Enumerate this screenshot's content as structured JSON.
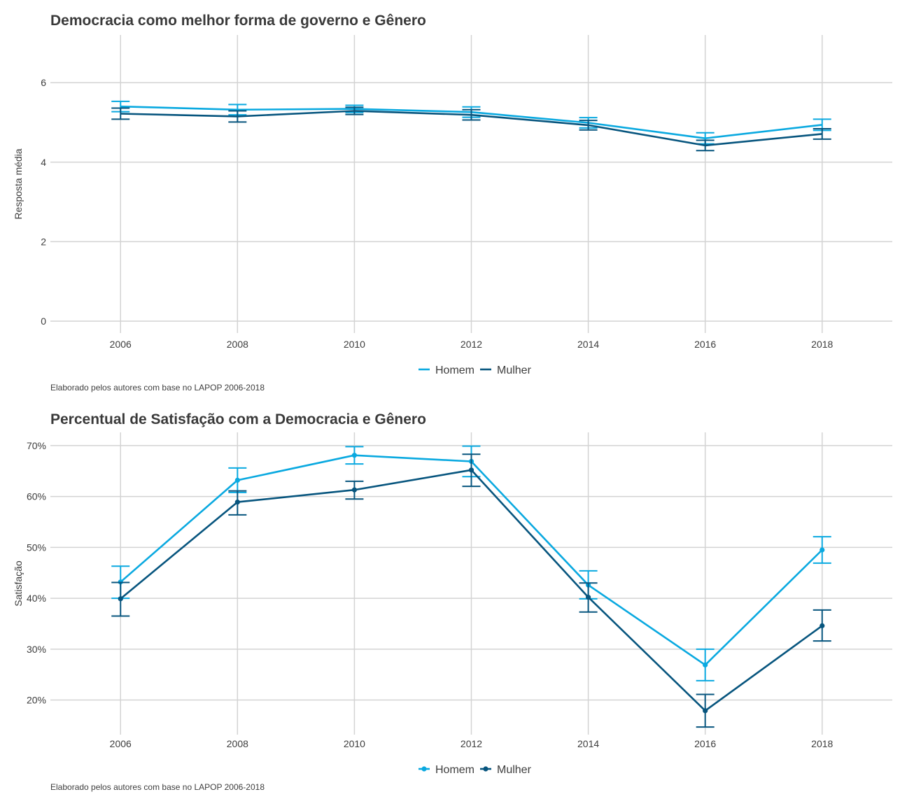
{
  "chart_data": [
    {
      "type": "line",
      "title": "Democracia como melhor forma de governo e Gênero",
      "xlabel": "",
      "ylabel": "Resposta média",
      "x": [
        2006,
        2008,
        2010,
        2012,
        2014,
        2016,
        2018
      ],
      "xlim": [
        2004.8,
        2019.2
      ],
      "ylim": [
        -0.3,
        7.2
      ],
      "yticks": [
        0,
        2,
        4,
        6
      ],
      "ytick_labels": [
        "0",
        "2",
        "4",
        "6"
      ],
      "points": false,
      "grid": true,
      "legend_position": "bottom",
      "series": [
        {
          "name": "Homem",
          "color": "#0aa9e0",
          "values": [
            5.4,
            5.32,
            5.34,
            5.26,
            4.99,
            4.6,
            4.94
          ],
          "lower": [
            5.27,
            5.19,
            5.25,
            5.13,
            4.86,
            4.46,
            4.8
          ],
          "upper": [
            5.53,
            5.45,
            5.43,
            5.39,
            5.12,
            4.74,
            5.08
          ]
        },
        {
          "name": "Mulher",
          "color": "#07557e",
          "values": [
            5.22,
            5.15,
            5.29,
            5.19,
            4.93,
            4.42,
            4.71
          ],
          "lower": [
            5.08,
            5.01,
            5.2,
            5.06,
            4.81,
            4.29,
            4.58
          ],
          "upper": [
            5.36,
            5.29,
            5.38,
            5.32,
            5.05,
            4.55,
            4.84
          ]
        }
      ],
      "caption": "Elaborado pelos autores com base no LAPOP 2006-2018"
    },
    {
      "type": "line",
      "title": "Percentual de Satisfação com a Democracia e Gênero",
      "xlabel": "",
      "ylabel": "Satisfação",
      "x": [
        2006,
        2008,
        2010,
        2012,
        2014,
        2016,
        2018
      ],
      "xlim": [
        2004.8,
        2019.2
      ],
      "ylim": [
        13.2,
        72.6
      ],
      "yticks": [
        20,
        30,
        40,
        50,
        60,
        70
      ],
      "ytick_labels": [
        "20%",
        "30%",
        "40%",
        "50%",
        "60%",
        "70%"
      ],
      "points": true,
      "grid": true,
      "legend_position": "bottom",
      "series": [
        {
          "name": "Homem",
          "color": "#0aa9e0",
          "values": [
            43.2,
            63.2,
            68.1,
            66.9,
            42.6,
            26.9,
            49.5
          ],
          "lower": [
            40.0,
            60.8,
            66.4,
            63.9,
            39.9,
            23.8,
            46.9
          ],
          "upper": [
            46.3,
            65.6,
            69.8,
            69.9,
            45.4,
            30.0,
            52.1
          ]
        },
        {
          "name": "Mulher",
          "color": "#07557e",
          "values": [
            39.9,
            58.9,
            61.3,
            65.2,
            40.2,
            17.9,
            34.6
          ],
          "lower": [
            36.5,
            56.4,
            59.5,
            62.0,
            37.3,
            14.7,
            31.6
          ],
          "upper": [
            43.1,
            61.1,
            63.0,
            68.3,
            43.0,
            21.1,
            37.7
          ]
        }
      ],
      "caption": "Elaborado pelos autores com base no LAPOP 2006-2018"
    }
  ]
}
